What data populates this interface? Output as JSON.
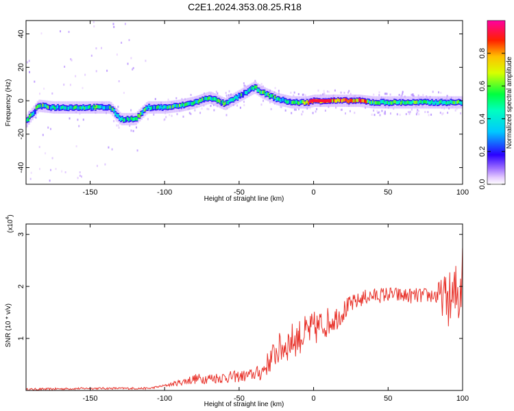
{
  "page_title": "C2E1.2024.353.08.25.R18",
  "chart_data": [
    {
      "type": "heatmap",
      "title": "C2E1.2024.353.08.25.R18",
      "xlabel": "Height of straight line (km)",
      "ylabel": "Frequency (Hz)",
      "xlim": [
        -193,
        100
      ],
      "ylim": [
        -50,
        48
      ],
      "xticks": [
        -150,
        -100,
        -50,
        0,
        50,
        100
      ],
      "yticks": [
        -40,
        -20,
        0,
        20,
        40
      ],
      "ridge": {
        "x": [
          -193,
          -185,
          -175,
          -165,
          -155,
          -145,
          -137,
          -130,
          -120,
          -112,
          -100,
          -90,
          -80,
          -70,
          -60,
          -50,
          -40,
          -35,
          -25,
          -15,
          -5,
          0,
          10,
          20,
          30,
          40,
          50,
          60,
          70,
          80,
          90,
          100
        ],
        "y": [
          -12,
          -3,
          -4,
          -4,
          -4,
          -4,
          -4,
          -11,
          -11,
          -4,
          -4,
          -3,
          -1,
          2,
          -2,
          3,
          8,
          5,
          1,
          -1,
          -1,
          0,
          0,
          0,
          0,
          -1,
          -1,
          -1,
          -1,
          -1,
          -1,
          -1
        ]
      },
      "colorbar": {
        "label": "Normalized spectral amplitude",
        "range": [
          0,
          1
        ],
        "ticks": [
          "0.0",
          "0.2",
          "0.4",
          "0.6",
          "0.8"
        ]
      }
    },
    {
      "type": "line",
      "xlabel": "Height of straight line (km)",
      "ylabel": "SNR (10 * v/v)",
      "scale_label": "(x10",
      "scale_exp": "4",
      "xlim": [
        -193,
        100
      ],
      "ylim": [
        0,
        3.2
      ],
      "xticks": [
        -150,
        -100,
        -50,
        0,
        50,
        100
      ],
      "yticks": [
        1,
        2,
        3
      ],
      "color": "#e8322a",
      "envelope": {
        "x": [
          -193,
          -150,
          -110,
          -95,
          -80,
          -60,
          -45,
          -35,
          -25,
          -15,
          -5,
          5,
          15,
          25,
          35,
          50,
          60,
          70,
          80,
          88,
          93,
          98,
          100
        ],
        "y": [
          0.02,
          0.04,
          0.04,
          0.12,
          0.22,
          0.25,
          0.28,
          0.35,
          0.75,
          0.95,
          1.1,
          1.25,
          1.4,
          1.65,
          1.8,
          1.85,
          1.82,
          1.82,
          1.83,
          1.8,
          1.7,
          1.9,
          2.6
        ]
      },
      "noise": {
        "x": [
          -193,
          -100,
          -80,
          -40,
          -20,
          0,
          30,
          80,
          90,
          100
        ],
        "amp": [
          0.02,
          0.02,
          0.1,
          0.12,
          0.35,
          0.35,
          0.15,
          0.15,
          0.5,
          0.9
        ]
      }
    }
  ]
}
